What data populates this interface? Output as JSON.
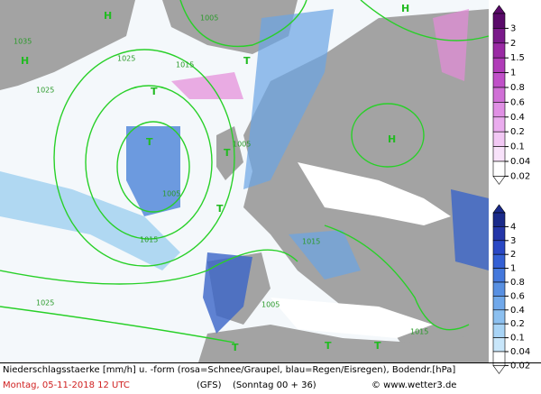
{
  "map": {
    "isobar_labels": [
      "1035",
      "1025",
      "1025",
      "1015",
      "1005",
      "1005",
      "1015",
      "1025",
      "1005",
      "1015",
      "1015",
      "1005"
    ],
    "pressure_centers": [
      "H",
      "H",
      "H",
      "H",
      "T",
      "T",
      "T",
      "T",
      "T",
      "T",
      "T",
      "T"
    ]
  },
  "legend": {
    "snow_scale": [
      "3",
      "2",
      "1.5",
      "1",
      "0.8",
      "0.6",
      "0.4",
      "0.2",
      "0.1",
      "0.04",
      "0.02"
    ],
    "rain_scale": [
      "4",
      "3",
      "2",
      "1",
      "0.8",
      "0.6",
      "0.4",
      "0.2",
      "0.1",
      "0.04",
      "0.02"
    ]
  },
  "footer": {
    "description": "Niederschlagsstaerke [mm/h] u. -form (rosa=Schnee/Graupel, blau=Regen/Eisregen), Bodendr.[hPa]",
    "date": "Montag, 05-11-2018  12 UTC",
    "model": "(GFS)",
    "run": "(Sonntag 00 + 36)",
    "copyright": "© www.wetter3.de"
  }
}
